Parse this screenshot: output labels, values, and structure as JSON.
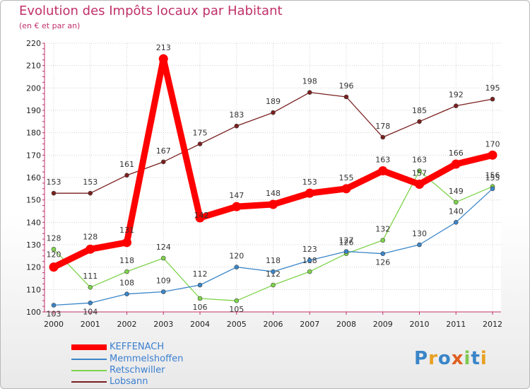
{
  "title": "Evolution des Impôts locaux par Habitant",
  "subtitle": "(en € et par an)",
  "logo": "Proxiti",
  "chart_data": {
    "type": "line",
    "title": "Evolution des Impôts locaux par Habitant",
    "ylabel": "(en € et par an)",
    "xlabel": "",
    "ylim": [
      100,
      220
    ],
    "yticks": [
      "100",
      "110",
      "120",
      "130",
      "140",
      "150",
      "160",
      "170",
      "180",
      "190",
      "200",
      "210",
      "220"
    ],
    "categories": [
      "2000",
      "2001",
      "2002",
      "2003",
      "2004",
      "2005",
      "2006",
      "2007",
      "2008",
      "2009",
      "2010",
      "2011",
      "2012"
    ],
    "series": [
      {
        "name": "KEFFENACH",
        "color": "#ff0000",
        "values": [
          120,
          128,
          131,
          213,
          142,
          147,
          148,
          153,
          155,
          163,
          157,
          166,
          170
        ]
      },
      {
        "name": "Memmelshoffen",
        "color": "#3a85c8",
        "values": [
          103,
          104,
          108,
          109,
          112,
          120,
          118,
          123,
          127,
          126,
          130,
          140,
          155
        ]
      },
      {
        "name": "Retschwiller",
        "color": "#7ed34a",
        "values": [
          128,
          111,
          118,
          124,
          106,
          105,
          112,
          118,
          126,
          132,
          163,
          149,
          156
        ]
      },
      {
        "name": "Lobsann",
        "color": "#7a1f1f",
        "values": [
          153,
          153,
          161,
          167,
          175,
          183,
          189,
          198,
          196,
          178,
          185,
          192,
          195
        ]
      }
    ]
  }
}
